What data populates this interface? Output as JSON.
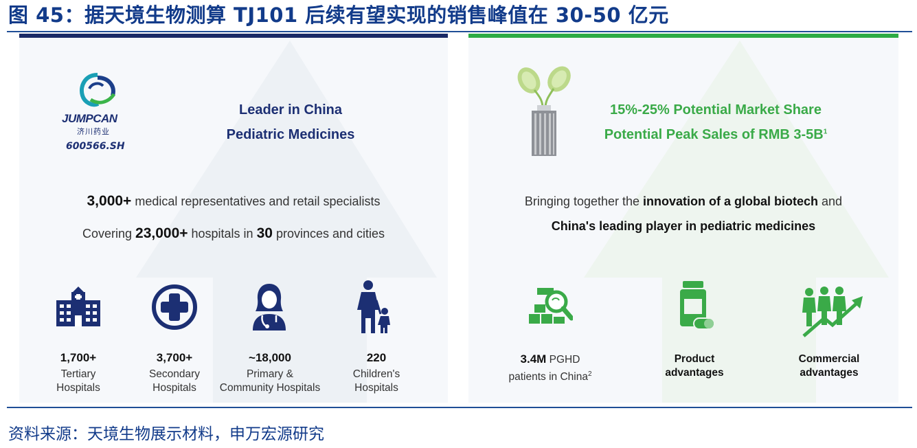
{
  "figure": {
    "title": "图 45：据天境生物测算 TJ101 后续有望实现的销售峰值在 30-50 亿元",
    "source": "资料来源：天境生物展示材料，申万宏源研究"
  },
  "left_panel": {
    "logo_word": "JUMPCAN",
    "logo_cn": "济川药业",
    "ticker": "600566.SH",
    "headline_line1": "Leader in China",
    "headline_line2": "Pediatric Medicines",
    "stat1": {
      "num": "3,000+",
      "text": " medical representatives and retail specialists"
    },
    "stat2": {
      "pre": "Covering ",
      "num1": "23,000+",
      "mid": " hospitals in ",
      "num2": "30",
      "post": " provinces and cities"
    },
    "hospitals": [
      {
        "icon": "hospital-building-icon",
        "count": "1,700+",
        "line1": "Tertiary",
        "line2": "Hospitals"
      },
      {
        "icon": "medical-cross-icon",
        "count": "3,700+",
        "line1": "Secondary",
        "line2": "Hospitals"
      },
      {
        "icon": "doctor-icon",
        "count": "~18,000",
        "line1": "Primary &",
        "line2": "Community Hospitals"
      },
      {
        "icon": "parent-child-icon",
        "count": "220",
        "line1": "Children's",
        "line2": "Hospitals"
      }
    ]
  },
  "right_panel": {
    "headline_line1": "15%-25% Potential Market Share",
    "headline_line2": "Potential Peak Sales of RMB 3-5B",
    "headline_sup": "1",
    "desc_line1_pre": "Bringing together the ",
    "desc_line1_bold": "innovation of a global biotech",
    "desc_line1_post": " and",
    "desc_line2_bold": "China's leading player in pediatric medicines",
    "items": [
      {
        "icon": "patient-search-icon",
        "num": "3.4M",
        "text": " PGHD",
        "line2": "patients in China",
        "sup": "2"
      },
      {
        "icon": "medicine-bottle-icon",
        "line1": "Product",
        "line2": "advantages"
      },
      {
        "icon": "growth-people-icon",
        "line1": "Commercial",
        "line2": "advantages"
      }
    ]
  },
  "colors": {
    "navy": "#1c2f73",
    "title_blue": "#123b8a",
    "green": "#3aaa48"
  }
}
